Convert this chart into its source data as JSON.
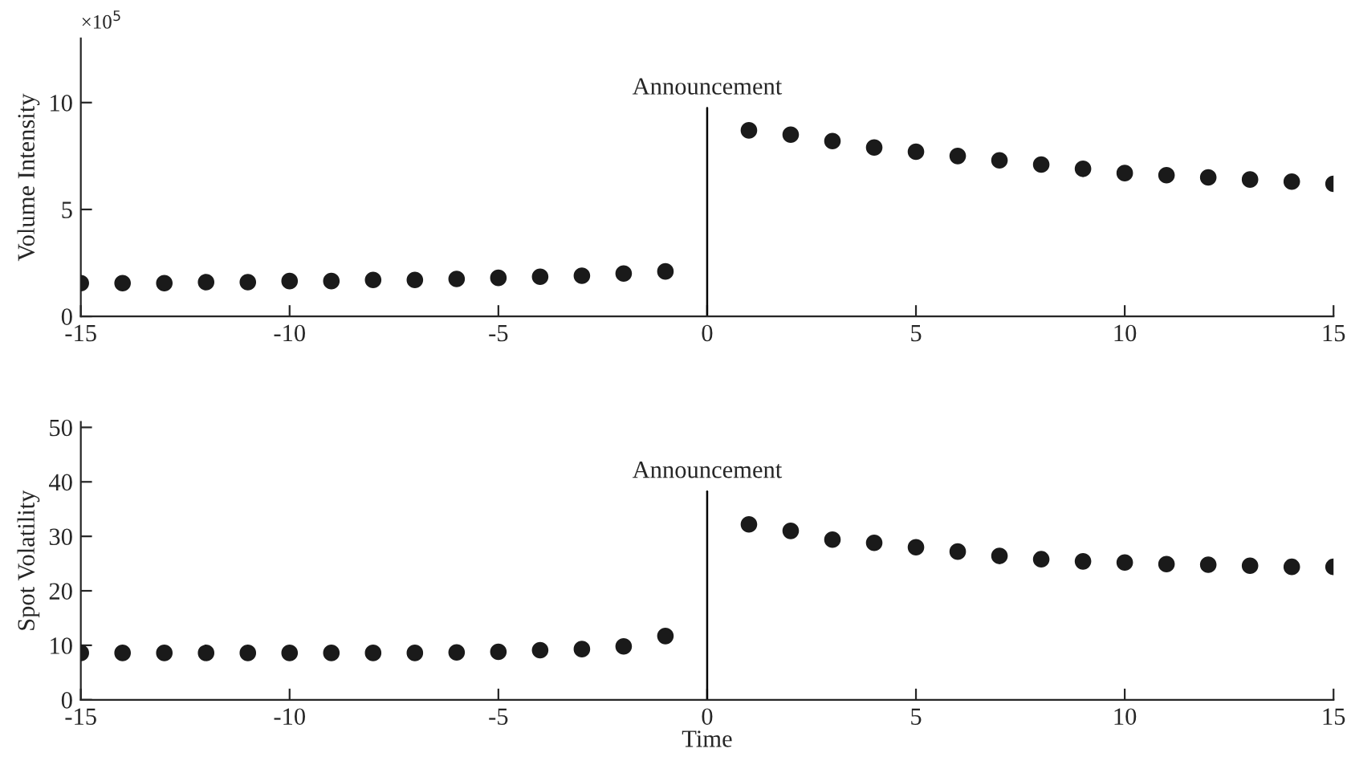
{
  "chart_data": [
    {
      "type": "scatter",
      "ylabel": "Volume Intensity",
      "annotations": [
        "×10$^{5}$"
      ],
      "marker": "circle",
      "grid": false,
      "xlim": [
        -15,
        15
      ],
      "xticks": [
        -15,
        -10,
        -5,
        0,
        5,
        10,
        15
      ],
      "ylim": [
        0,
        13
      ],
      "yticks": [
        0,
        5,
        10
      ],
      "ref_lines": [
        {
          "axis": "x",
          "value": 0,
          "label": "Announcement",
          "color": "#000000"
        }
      ],
      "series": [
        {
          "color": "#1a1a1a",
          "x": [
            -15,
            -14,
            -13,
            -12,
            -11,
            -10,
            -9,
            -8,
            -7,
            -6,
            -5,
            -4,
            -3,
            -2,
            -1,
            1,
            2,
            3,
            4,
            5,
            6,
            7,
            8,
            9,
            10,
            11,
            12,
            13,
            14,
            15
          ],
          "values": [
            1.55,
            1.55,
            1.55,
            1.6,
            1.6,
            1.65,
            1.65,
            1.7,
            1.7,
            1.75,
            1.8,
            1.85,
            1.9,
            2.0,
            2.1,
            8.7,
            8.5,
            8.2,
            7.9,
            7.7,
            7.5,
            7.3,
            7.1,
            6.9,
            6.7,
            6.6,
            6.5,
            6.4,
            6.3,
            6.2
          ]
        }
      ]
    },
    {
      "type": "scatter",
      "ylabel": "Spot Volatility",
      "xlabel": "Time",
      "marker": "circle",
      "grid": false,
      "xlim": [
        -15,
        15
      ],
      "xticks": [
        -15,
        -10,
        -5,
        0,
        5,
        10,
        15
      ],
      "ylim": [
        0,
        51
      ],
      "yticks": [
        0,
        10,
        20,
        30,
        40,
        50
      ],
      "ref_lines": [
        {
          "axis": "x",
          "value": 0,
          "label": "Announcement",
          "color": "#000000"
        }
      ],
      "series": [
        {
          "color": "#1a1a1a",
          "x": [
            -15,
            -14,
            -13,
            -12,
            -11,
            -10,
            -9,
            -8,
            -7,
            -6,
            -5,
            -4,
            -3,
            -2,
            -1,
            1,
            2,
            3,
            4,
            5,
            6,
            7,
            8,
            9,
            10,
            11,
            12,
            13,
            14,
            15
          ],
          "values": [
            8.6,
            8.6,
            8.6,
            8.6,
            8.6,
            8.6,
            8.6,
            8.6,
            8.6,
            8.7,
            8.8,
            9.1,
            9.3,
            9.8,
            11.7,
            32.2,
            31.0,
            29.4,
            28.8,
            28.0,
            27.2,
            26.4,
            25.8,
            25.4,
            25.2,
            24.9,
            24.8,
            24.6,
            24.4,
            24.4
          ]
        }
      ]
    }
  ]
}
